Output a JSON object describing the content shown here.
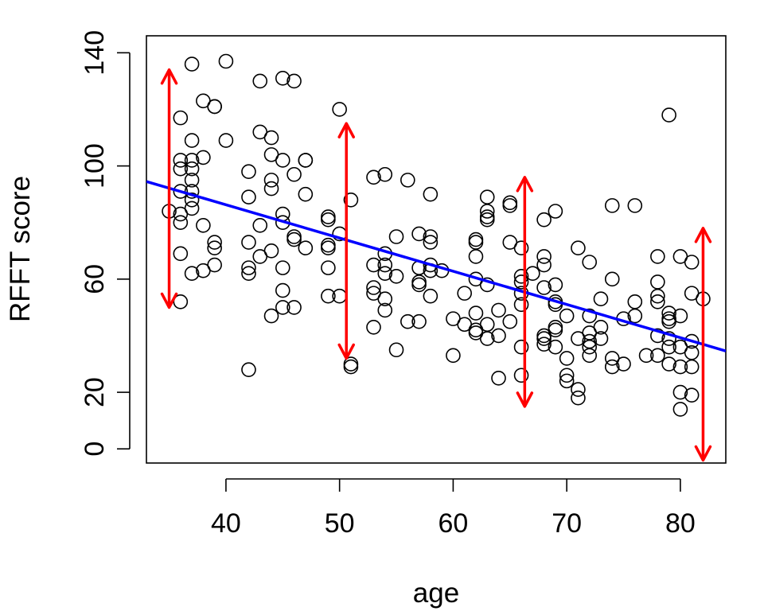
{
  "chart_data": {
    "type": "scatter",
    "title": "",
    "xlabel": "age",
    "ylabel": "RFFT score",
    "xlim": [
      33,
      84
    ],
    "ylim": [
      -5,
      146
    ],
    "xticks": [
      40,
      50,
      60,
      70,
      80
    ],
    "yticks": [
      0,
      20,
      60,
      100,
      140
    ],
    "grid": false,
    "colors": {
      "points": "#000000",
      "fit_line": "#0000ff",
      "arrows": "#ff0000"
    },
    "series": [
      {
        "type": "scatter",
        "points": [
          [
            35,
            84
          ],
          [
            36,
            117
          ],
          [
            36,
            102
          ],
          [
            36,
            99
          ],
          [
            36,
            91
          ],
          [
            36,
            83
          ],
          [
            36,
            80
          ],
          [
            36,
            69
          ],
          [
            36,
            52
          ],
          [
            37,
            136
          ],
          [
            37,
            109
          ],
          [
            37,
            102
          ],
          [
            37,
            99
          ],
          [
            37,
            95
          ],
          [
            37,
            91
          ],
          [
            37,
            88
          ],
          [
            37,
            85
          ],
          [
            37,
            62
          ],
          [
            38,
            123
          ],
          [
            38,
            103
          ],
          [
            38,
            79
          ],
          [
            38,
            63
          ],
          [
            39,
            121
          ],
          [
            39,
            121
          ],
          [
            39,
            73
          ],
          [
            39,
            71
          ],
          [
            39,
            65
          ],
          [
            40,
            137
          ],
          [
            40,
            109
          ],
          [
            42,
            98
          ],
          [
            42,
            89
          ],
          [
            42,
            73
          ],
          [
            42,
            64
          ],
          [
            42,
            62
          ],
          [
            42,
            28
          ],
          [
            43,
            130
          ],
          [
            43,
            112
          ],
          [
            43,
            79
          ],
          [
            43,
            68
          ],
          [
            44,
            110
          ],
          [
            44,
            104
          ],
          [
            44,
            95
          ],
          [
            44,
            92
          ],
          [
            44,
            70
          ],
          [
            44,
            47
          ],
          [
            45,
            131
          ],
          [
            45,
            102
          ],
          [
            45,
            83
          ],
          [
            45,
            80
          ],
          [
            45,
            64
          ],
          [
            45,
            56
          ],
          [
            45,
            50
          ],
          [
            46,
            130
          ],
          [
            46,
            97
          ],
          [
            46,
            75
          ],
          [
            46,
            74
          ],
          [
            46,
            50
          ],
          [
            47,
            102
          ],
          [
            47,
            102
          ],
          [
            47,
            90
          ],
          [
            47,
            71
          ],
          [
            49,
            82
          ],
          [
            49,
            81
          ],
          [
            49,
            72
          ],
          [
            49,
            71
          ],
          [
            49,
            64
          ],
          [
            49,
            54
          ],
          [
            50,
            120
          ],
          [
            50,
            76
          ],
          [
            50,
            54
          ],
          [
            51,
            88
          ],
          [
            51,
            30
          ],
          [
            51,
            29
          ],
          [
            53,
            96
          ],
          [
            53,
            65
          ],
          [
            53,
            57
          ],
          [
            53,
            55
          ],
          [
            53,
            43
          ],
          [
            54,
            97
          ],
          [
            54,
            69
          ],
          [
            54,
            65
          ],
          [
            54,
            62
          ],
          [
            54,
            53
          ],
          [
            54,
            49
          ],
          [
            55,
            75
          ],
          [
            55,
            61
          ],
          [
            55,
            35
          ],
          [
            56,
            95
          ],
          [
            56,
            45
          ],
          [
            57,
            76
          ],
          [
            57,
            64
          ],
          [
            57,
            59
          ],
          [
            57,
            58
          ],
          [
            57,
            45
          ],
          [
            58,
            90
          ],
          [
            58,
            75
          ],
          [
            58,
            73
          ],
          [
            58,
            65
          ],
          [
            58,
            63
          ],
          [
            58,
            54
          ],
          [
            59,
            63
          ],
          [
            60,
            46
          ],
          [
            60,
            33
          ],
          [
            61,
            55
          ],
          [
            61,
            44
          ],
          [
            62,
            74
          ],
          [
            62,
            73
          ],
          [
            62,
            68
          ],
          [
            62,
            60
          ],
          [
            62,
            48
          ],
          [
            62,
            42
          ],
          [
            62,
            41
          ],
          [
            63,
            89
          ],
          [
            63,
            84
          ],
          [
            63,
            82
          ],
          [
            63,
            81
          ],
          [
            63,
            58
          ],
          [
            63,
            44
          ],
          [
            63,
            39
          ],
          [
            64,
            49
          ],
          [
            64,
            40
          ],
          [
            64,
            25
          ],
          [
            65,
            87
          ],
          [
            65,
            86
          ],
          [
            65,
            73
          ],
          [
            65,
            45
          ],
          [
            66,
            71
          ],
          [
            66,
            61
          ],
          [
            66,
            59
          ],
          [
            66,
            55
          ],
          [
            66,
            51
          ],
          [
            66,
            36
          ],
          [
            66,
            26
          ],
          [
            67,
            62
          ],
          [
            68,
            81
          ],
          [
            68,
            68
          ],
          [
            68,
            65
          ],
          [
            68,
            57
          ],
          [
            68,
            40
          ],
          [
            68,
            39
          ],
          [
            68,
            37
          ],
          [
            69,
            84
          ],
          [
            69,
            58
          ],
          [
            69,
            52
          ],
          [
            69,
            51
          ],
          [
            69,
            43
          ],
          [
            69,
            42
          ],
          [
            69,
            36
          ],
          [
            70,
            47
          ],
          [
            70,
            32
          ],
          [
            70,
            26
          ],
          [
            70,
            24
          ],
          [
            71,
            71
          ],
          [
            71,
            39
          ],
          [
            71,
            21
          ],
          [
            71,
            18
          ],
          [
            72,
            66
          ],
          [
            72,
            47
          ],
          [
            72,
            41
          ],
          [
            72,
            38
          ],
          [
            72,
            36
          ],
          [
            72,
            33
          ],
          [
            73,
            53
          ],
          [
            73,
            43
          ],
          [
            73,
            39
          ],
          [
            74,
            86
          ],
          [
            74,
            60
          ],
          [
            74,
            32
          ],
          [
            74,
            29
          ],
          [
            75,
            46
          ],
          [
            75,
            30
          ],
          [
            76,
            86
          ],
          [
            76,
            52
          ],
          [
            76,
            47
          ],
          [
            77,
            33
          ],
          [
            78,
            68
          ],
          [
            78,
            59
          ],
          [
            78,
            54
          ],
          [
            78,
            52
          ],
          [
            78,
            40
          ],
          [
            78,
            33
          ],
          [
            79,
            118
          ],
          [
            79,
            48
          ],
          [
            79,
            46
          ],
          [
            79,
            45
          ],
          [
            79,
            39
          ],
          [
            79,
            36
          ],
          [
            79,
            30
          ],
          [
            80,
            68
          ],
          [
            80,
            47
          ],
          [
            80,
            36
          ],
          [
            80,
            29
          ],
          [
            80,
            20
          ],
          [
            80,
            14
          ],
          [
            81,
            66
          ],
          [
            81,
            55
          ],
          [
            81,
            38
          ],
          [
            81,
            34
          ],
          [
            81,
            29
          ],
          [
            81,
            19
          ],
          [
            82,
            53
          ]
        ]
      },
      {
        "type": "line",
        "x": [
          33,
          84
        ],
        "y": [
          94.5,
          34.6
        ]
      },
      {
        "type": "arrows",
        "segments": [
          {
            "x": 35,
            "y": [
              50,
              134
            ]
          },
          {
            "x": 50.6,
            "y": [
              32,
              115
            ]
          },
          {
            "x": 66.3,
            "y": [
              15,
              96
            ]
          },
          {
            "x": 82,
            "y": [
              -4,
              78
            ]
          }
        ]
      }
    ]
  }
}
